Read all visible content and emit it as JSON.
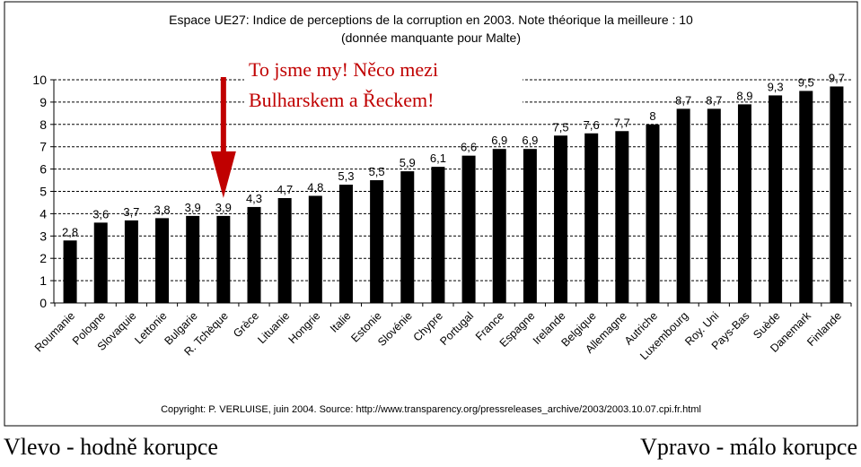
{
  "chart_data": {
    "type": "bar",
    "title": "Espace UE27: Indice de perceptions de la corruption en 2003. Note théorique la meilleure : 10",
    "subtitle": "(donnée manquante pour Malte)",
    "categories": [
      "Roumanie",
      "Pologne",
      "Slovaquie",
      "Lettonie",
      "Bulgarie",
      "R. Tchèque",
      "Grèce",
      "Lituanie",
      "Hongrie",
      "Italie",
      "Estonie",
      "Slovénie",
      "Chypre",
      "Portugal",
      "France",
      "Espagne",
      "Irelande",
      "Belgique",
      "Allemagne",
      "Autriche",
      "Luxembourg",
      "Roy. Uni",
      "Pays-Bas",
      "Suède",
      "Danemark",
      "Finlande"
    ],
    "values": [
      2.8,
      3.6,
      3.7,
      3.8,
      3.9,
      3.9,
      4.3,
      4.7,
      4.8,
      5.3,
      5.5,
      5.9,
      6.1,
      6.6,
      6.9,
      6.9,
      7.5,
      7.6,
      7.7,
      8,
      8.7,
      8.7,
      8.9,
      9.3,
      9.5,
      9.7
    ],
    "data_labels": [
      "2,8",
      "3,6",
      "3,7",
      "3,8",
      "3,9",
      "3,9",
      "4,3",
      "4,7",
      "4,8",
      "5,3",
      "5,5",
      "5,9",
      "6,1",
      "6,6",
      "6,9",
      "6,9",
      "7,5",
      "7,6",
      "7,7",
      "8",
      "8,7",
      "8,7",
      "8,9",
      "9,3",
      "9,5",
      "9,7"
    ],
    "y_ticks": [
      "0",
      "1",
      "2",
      "3",
      "4",
      "5",
      "6",
      "7",
      "8",
      "9",
      "10"
    ],
    "ylim": [
      0,
      10
    ],
    "grid": true,
    "bar_color": "#000000",
    "annotation": {
      "lines": [
        "To jsme my! Něco mezi",
        "Bulharskem a Řeckem!"
      ],
      "target_index": 5,
      "color": "#c00000"
    },
    "footer": "Copyright: P. VERLUISE, juin 2004. Source: http://www.transparency.org/pressreleases_archive/2003/2003.10.07.cpi.fr.html"
  },
  "captions": {
    "left": "Vlevo - hodně korupce",
    "right": "Vpravo - málo korupce"
  }
}
